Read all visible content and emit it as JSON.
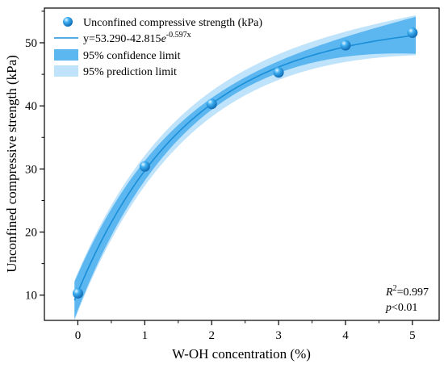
{
  "chart_data": {
    "type": "scatter",
    "xlabel": "W-OH concentration (%)",
    "ylabel": "Unconfined compressive strength (kPa)",
    "xlim": [
      -0.5,
      5.4
    ],
    "ylim": [
      6,
      55.5
    ],
    "xticks": [
      "0",
      "1",
      "2",
      "3",
      "4",
      "5"
    ],
    "yticks": [
      "10",
      "20",
      "30",
      "40",
      "50"
    ],
    "grid": false,
    "legend_position": "top-left",
    "series": [
      {
        "name": "Unconfined compressive strength (kPa)",
        "kind": "scatter",
        "x": [
          0,
          1,
          2,
          3,
          4,
          5
        ],
        "y": [
          10.3,
          30.4,
          40.3,
          45.3,
          49.6,
          51.6
        ]
      }
    ],
    "fit": {
      "a": 53.29,
      "b": 42.815,
      "k": 0.597,
      "equation_prefix": "y=53.290-42.815",
      "equation_base": "e",
      "equation_exponent": "-0.597x"
    },
    "bands": {
      "confidence_label": "95% confidence limit",
      "prediction_label": "95% prediction limit"
    },
    "annotations": {
      "r2_symbol": "R",
      "r2_power": "2",
      "r2_value": "=0.997",
      "p_symbol": "p",
      "p_value": "<0.01"
    },
    "colors": {
      "marker": "#1f9be0",
      "marker_dark": "#0c6fb8",
      "fit_line": "#1a8fd8",
      "confidence": "#5cb6f0",
      "prediction": "#bfe3fb"
    }
  }
}
